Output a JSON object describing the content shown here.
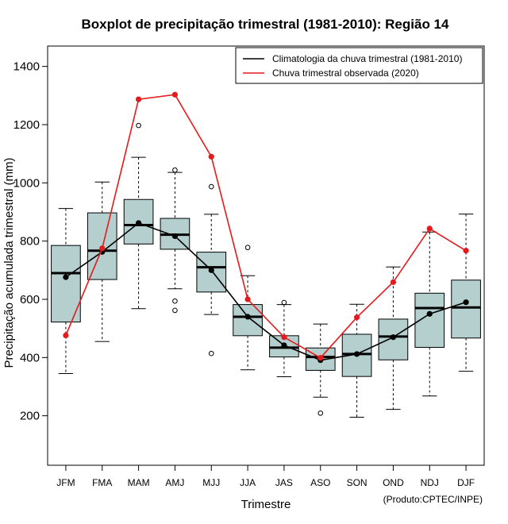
{
  "chart_data": {
    "type": "boxplot",
    "title": "Boxplot de precipitação trimestral (1981-2010): Região 14",
    "xlabel": "Trimestre",
    "ylabel": "Precipitação acumulada trimestral (mm)",
    "ylim": [
      30,
      1470
    ],
    "yticks": [
      200,
      400,
      600,
      800,
      1000,
      1200,
      1400
    ],
    "categories": [
      "JFM",
      "FMA",
      "MAM",
      "AMJ",
      "MJJ",
      "JJA",
      "JAS",
      "ASO",
      "SON",
      "OND",
      "NDJ",
      "DJF"
    ],
    "boxes": [
      {
        "whisker_low": 345,
        "q1": 522,
        "median": 690,
        "q3": 785,
        "whisker_high": 912,
        "outliers": []
      },
      {
        "whisker_low": 455,
        "q1": 668,
        "median": 767,
        "q3": 897,
        "whisker_high": 1003,
        "outliers": []
      },
      {
        "whisker_low": 568,
        "q1": 790,
        "median": 855,
        "q3": 943,
        "whisker_high": 1088,
        "outliers": [
          1197
        ]
      },
      {
        "whisker_low": 636,
        "q1": 772,
        "median": 822,
        "q3": 878,
        "whisker_high": 1036,
        "outliers": [
          1044,
          594,
          562
        ]
      },
      {
        "whisker_low": 548,
        "q1": 625,
        "median": 710,
        "q3": 762,
        "whisker_high": 892,
        "outliers": [
          987,
          414
        ]
      },
      {
        "whisker_low": 358,
        "q1": 475,
        "median": 540,
        "q3": 582,
        "whisker_high": 681,
        "outliers": [
          778
        ]
      },
      {
        "whisker_low": 334,
        "q1": 402,
        "median": 434,
        "q3": 475,
        "whisker_high": 582,
        "outliers": [
          589
        ]
      },
      {
        "whisker_low": 264,
        "q1": 356,
        "median": 402,
        "q3": 433,
        "whisker_high": 515,
        "outliers": [
          209
        ]
      },
      {
        "whisker_low": 195,
        "q1": 335,
        "median": 412,
        "q3": 480,
        "whisker_high": 583,
        "outliers": []
      },
      {
        "whisker_low": 222,
        "q1": 392,
        "median": 472,
        "q3": 532,
        "whisker_high": 711,
        "outliers": []
      },
      {
        "whisker_low": 268,
        "q1": 435,
        "median": 570,
        "q3": 621,
        "whisker_high": 831,
        "outliers": []
      },
      {
        "whisker_low": 353,
        "q1": 467,
        "median": 572,
        "q3": 666,
        "whisker_high": 893,
        "outliers": []
      }
    ],
    "series": [
      {
        "name": "Climatologia da chuva trimestral (1981-2010)",
        "color": "#000000",
        "values": [
          676,
          763,
          862,
          817,
          700,
          540,
          442,
          391,
          412,
          470,
          550,
          590
        ]
      },
      {
        "name": "Chuva trimestral observada (2020)",
        "color": "#e41a1c",
        "values": [
          476,
          775,
          1287,
          1303,
          1090,
          600,
          470,
          399,
          538,
          659,
          843,
          767
        ]
      }
    ],
    "legend_position": "top-right",
    "box_fill": "#b5cfcf"
  },
  "credit": "(Produto:CPTEC/INPE)"
}
